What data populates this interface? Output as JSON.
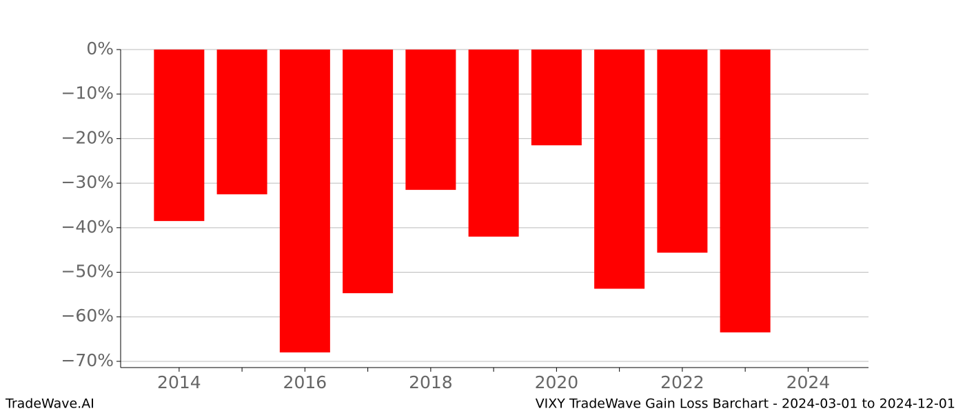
{
  "chart_data": {
    "type": "bar",
    "x": [
      2014,
      2015,
      2016,
      2017,
      2018,
      2019,
      2020,
      2021,
      2022,
      2023
    ],
    "values": [
      -38.5,
      -32.5,
      -68,
      -54.7,
      -31.5,
      -42,
      -21.5,
      -53.7,
      -45.6,
      -63.5
    ],
    "color": "#ff0000",
    "xlim": [
      2013.07,
      2024.96
    ],
    "xticks": [
      2014,
      2016,
      2018,
      2020,
      2022,
      2024
    ],
    "xminorticks": [
      2015,
      2017,
      2019,
      2021,
      2023
    ],
    "ylim": [
      -71.4,
      0
    ],
    "yticks": [
      {
        "value": 0,
        "label": "0%"
      },
      {
        "value": -10,
        "label": "−10%"
      },
      {
        "value": -20,
        "label": "−20%"
      },
      {
        "value": -30,
        "label": "−30%"
      },
      {
        "value": -40,
        "label": "−40%"
      },
      {
        "value": -50,
        "label": "−50%"
      },
      {
        "value": -60,
        "label": "−60%"
      },
      {
        "value": -70,
        "label": "−70%"
      }
    ],
    "grid": true,
    "footer_left": "TradeWave.AI",
    "footer_right": "VIXY TradeWave Gain Loss Barchart - 2024-03-01 to 2024-12-01"
  }
}
